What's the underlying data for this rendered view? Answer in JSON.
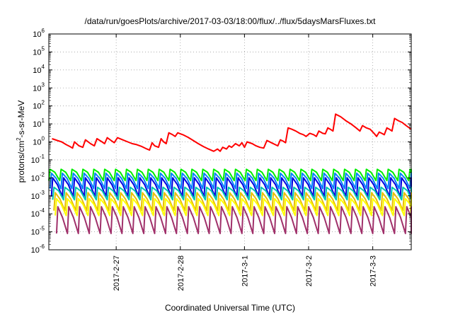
{
  "chart_data": {
    "type": "line",
    "title": "/data/run/goesPlots/archive/2017-03-03/18:00/flux/../flux/5daysMarsFluxes.txt",
    "xlabel": "Coordinated Universal Time (UTC)",
    "ylabel": {
      "pre": "protons/cm",
      "sup": "2",
      "post": "-s-sr-MeV"
    },
    "y_scale": "log",
    "ylim_exp": [
      -6,
      6
    ],
    "y_ticks": [
      {
        "base": "10",
        "exp": "-6"
      },
      {
        "base": "10",
        "exp": "-5"
      },
      {
        "base": "10",
        "exp": "-4"
      },
      {
        "base": "10",
        "exp": "-3"
      },
      {
        "base": "10",
        "exp": "-2"
      },
      {
        "base": "10",
        "exp": "-1"
      },
      {
        "base": "10",
        "exp": "0"
      },
      {
        "base": "10",
        "exp": "1"
      },
      {
        "base": "10",
        "exp": "2"
      },
      {
        "base": "10",
        "exp": "3"
      },
      {
        "base": "10",
        "exp": "4"
      },
      {
        "base": "10",
        "exp": "5"
      },
      {
        "base": "10",
        "exp": "6"
      }
    ],
    "xlim_days": [
      -0.05,
      5.6
    ],
    "x_ticks": [
      {
        "day": 1,
        "label": "2017-2-27"
      },
      {
        "day": 2,
        "label": "2017-2-28"
      },
      {
        "day": 3,
        "label": "2017-3-1"
      },
      {
        "day": 4,
        "label": "2017-3-2"
      },
      {
        "day": 5,
        "label": "2017-3-3"
      }
    ],
    "grid": true,
    "series": [
      {
        "color": "#ff0000",
        "kind": "trace",
        "points": [
          [
            0.0,
            1.5
          ],
          [
            0.08,
            1.2
          ],
          [
            0.15,
            1.0
          ],
          [
            0.22,
            0.7
          ],
          [
            0.28,
            0.55
          ],
          [
            0.32,
            0.45
          ],
          [
            0.35,
            1.0
          ],
          [
            0.42,
            0.6
          ],
          [
            0.48,
            0.5
          ],
          [
            0.52,
            1.3
          ],
          [
            0.6,
            0.8
          ],
          [
            0.66,
            0.6
          ],
          [
            0.7,
            1.5
          ],
          [
            0.78,
            1.0
          ],
          [
            0.82,
            0.8
          ],
          [
            0.86,
            1.7
          ],
          [
            0.92,
            1.2
          ],
          [
            0.97,
            0.9
          ],
          [
            1.02,
            1.7
          ],
          [
            1.1,
            1.3
          ],
          [
            1.18,
            1.0
          ],
          [
            1.25,
            0.8
          ],
          [
            1.32,
            0.7
          ],
          [
            1.4,
            0.55
          ],
          [
            1.48,
            0.4
          ],
          [
            1.52,
            0.35
          ],
          [
            1.56,
            0.9
          ],
          [
            1.6,
            0.6
          ],
          [
            1.66,
            0.5
          ],
          [
            1.7,
            1.5
          ],
          [
            1.74,
            1.0
          ],
          [
            1.78,
            0.8
          ],
          [
            1.82,
            3.2
          ],
          [
            1.88,
            2.5
          ],
          [
            1.92,
            2.0
          ],
          [
            1.96,
            3.2
          ],
          [
            2.04,
            2.5
          ],
          [
            2.12,
            1.8
          ],
          [
            2.2,
            1.2
          ],
          [
            2.28,
            0.8
          ],
          [
            2.36,
            0.55
          ],
          [
            2.44,
            0.4
          ],
          [
            2.52,
            0.3
          ],
          [
            2.58,
            0.4
          ],
          [
            2.62,
            0.3
          ],
          [
            2.66,
            0.5
          ],
          [
            2.72,
            0.4
          ],
          [
            2.76,
            0.6
          ],
          [
            2.8,
            0.5
          ],
          [
            2.86,
            0.8
          ],
          [
            2.92,
            0.6
          ],
          [
            2.96,
            0.9
          ],
          [
            3.0,
            0.5
          ],
          [
            3.04,
            1.0
          ],
          [
            3.12,
            0.8
          ],
          [
            3.18,
            0.6
          ],
          [
            3.24,
            0.5
          ],
          [
            3.3,
            0.45
          ],
          [
            3.35,
            1.2
          ],
          [
            3.42,
            0.9
          ],
          [
            3.48,
            0.7
          ],
          [
            3.52,
            0.6
          ],
          [
            3.56,
            1.3
          ],
          [
            3.6,
            1.1
          ],
          [
            3.64,
            0.9
          ],
          [
            3.68,
            6.0
          ],
          [
            3.74,
            5.0
          ],
          [
            3.8,
            4.0
          ],
          [
            3.86,
            3.0
          ],
          [
            3.92,
            2.5
          ],
          [
            3.96,
            2.0
          ],
          [
            4.02,
            3.0
          ],
          [
            4.08,
            2.5
          ],
          [
            4.12,
            2.0
          ],
          [
            4.16,
            4.0
          ],
          [
            4.22,
            3.0
          ],
          [
            4.26,
            2.8
          ],
          [
            4.3,
            6.0
          ],
          [
            4.34,
            5.0
          ],
          [
            4.38,
            4.0
          ],
          [
            4.42,
            35.0
          ],
          [
            4.5,
            25.0
          ],
          [
            4.58,
            15.0
          ],
          [
            4.66,
            10.0
          ],
          [
            4.74,
            6.0
          ],
          [
            4.8,
            4.0
          ],
          [
            4.84,
            8.0
          ],
          [
            4.9,
            6.0
          ],
          [
            4.96,
            5.0
          ],
          [
            5.02,
            3.0
          ],
          [
            5.06,
            2.0
          ],
          [
            5.1,
            3.5
          ],
          [
            5.14,
            3.0
          ],
          [
            5.18,
            2.5
          ],
          [
            5.22,
            6.0
          ],
          [
            5.26,
            5.0
          ],
          [
            5.3,
            4.0
          ],
          [
            5.34,
            20.0
          ],
          [
            5.4,
            15.0
          ],
          [
            5.46,
            12.0
          ],
          [
            5.52,
            8.0
          ],
          [
            5.6,
            5.0
          ]
        ]
      },
      {
        "color": "#00ee00",
        "kind": "sawtooth",
        "low": 0.007,
        "high": 0.03,
        "period": 0.17,
        "phase": 0.0
      },
      {
        "color": "#0080ff",
        "kind": "sawtooth",
        "low": 0.0025,
        "high": 0.018,
        "period": 0.17,
        "phase": 0.02
      },
      {
        "color": "#0000dd",
        "kind": "sawtooth",
        "low": 0.0009,
        "high": 0.01,
        "period": 0.17,
        "phase": 0.04
      },
      {
        "color": "#00c8b0",
        "kind": "sawtooth",
        "low": 0.0006,
        "high": 0.003,
        "period": 0.17,
        "phase": 0.06
      },
      {
        "color": "#e8c000",
        "kind": "sawtooth",
        "low": 0.00015,
        "high": 0.0015,
        "period": 0.17,
        "phase": 0.08
      },
      {
        "color": "#ffff00",
        "kind": "sawtooth",
        "low": 8e-05,
        "high": 0.0007,
        "period": 0.17,
        "phase": 0.1
      },
      {
        "color": "#a0306a",
        "kind": "sawtooth",
        "low": 8e-06,
        "high": 0.00025,
        "period": 0.17,
        "phase": 0.12
      }
    ]
  }
}
